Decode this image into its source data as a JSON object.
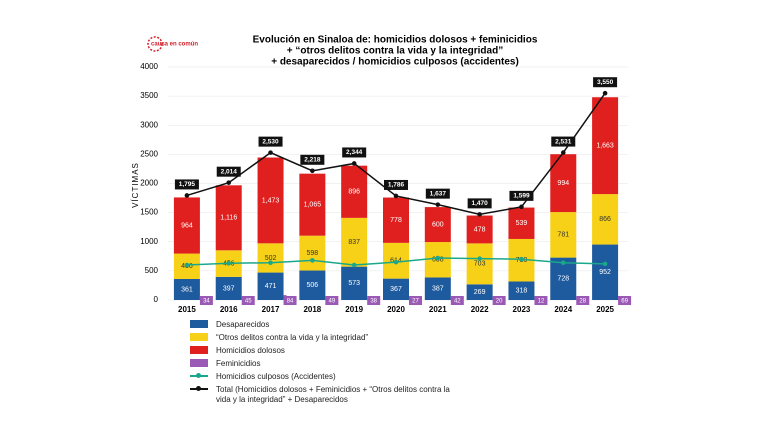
{
  "chart_data": {
    "type": "bar",
    "logo": "causa en común",
    "title": [
      "Evolución en Sinaloa de: homicidios dolosos + feminicidios",
      "+ “otros delitos contra la vida y la integridad”",
      "+ desaparecidos / homicidios culposos (accidentes)"
    ],
    "y_label": "VÍCTIMAS",
    "categories": [
      "2015",
      "2016",
      "2017",
      "2018",
      "2019",
      "2020",
      "2021",
      "2022",
      "2023",
      "2024",
      "2025"
    ],
    "ylim": [
      0,
      4000
    ],
    "yticks": [
      0,
      500,
      1000,
      1500,
      2000,
      2500,
      3000,
      3500,
      4000
    ],
    "series": [
      {
        "name": "Desaparecidos",
        "color": "#1d5a9e",
        "type": "stacked",
        "values": [
          361,
          397,
          471,
          506,
          573,
          367,
          387,
          269,
          318,
          728,
          952
        ]
      },
      {
        "name": "“Otros delitos contra la vida y la integridad”",
        "color": "#f7d117",
        "type": "stacked",
        "values": [
          436,
          456,
          502,
          598,
          837,
          614,
          608,
          703,
          730,
          781,
          866
        ]
      },
      {
        "name": "Homicidios dolosos",
        "color": "#e0201f",
        "type": "stacked",
        "values": [
          964,
          1116,
          1473,
          1065,
          896,
          778,
          600,
          478,
          539,
          994,
          1663
        ],
        "value_labels": [
          "964",
          "1,116",
          "1,473",
          "1,065",
          "896",
          "778",
          "600",
          "478",
          "539",
          "994",
          "1,663"
        ]
      },
      {
        "name": "Feminicidios",
        "color": "#9b59b6",
        "type": "small",
        "values": [
          34,
          45,
          84,
          49,
          38,
          27,
          42,
          20,
          12,
          28,
          69
        ]
      },
      {
        "name": "Homicidios culposos (Accidentes)",
        "color": "#1aa88a",
        "type": "line",
        "values": [
          600,
          630,
          640,
          680,
          600,
          650,
          720,
          710,
          700,
          640,
          620
        ]
      },
      {
        "name": "Total (Homicidios dolosos + Feminicidios + “Otros delitos contra la vida y la integridad” + Desaparecidos",
        "color": "#111111",
        "type": "total",
        "values": [
          1795,
          2014,
          2530,
          2218,
          2344,
          1786,
          1637,
          1470,
          1599,
          2531,
          3550
        ],
        "value_labels": [
          "1,795",
          "2,014",
          "2,530",
          "2,218",
          "2,344",
          "1,786",
          "1,637",
          "1,470",
          "1,599",
          "2,531",
          "3,550"
        ]
      }
    ]
  }
}
